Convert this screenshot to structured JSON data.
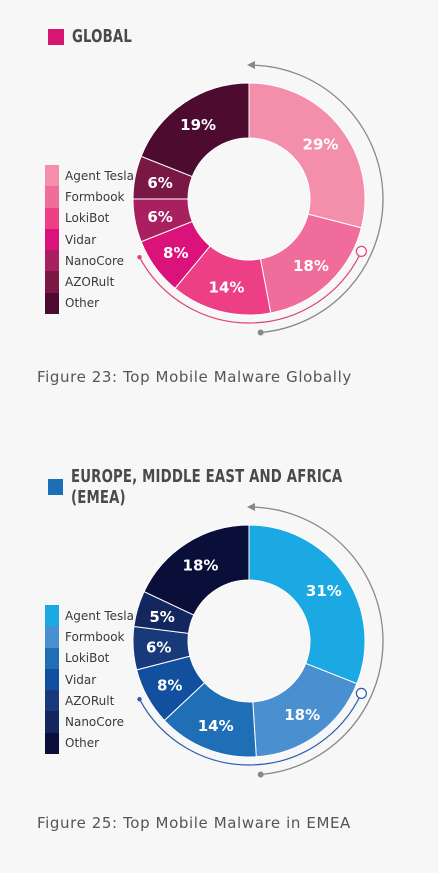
{
  "charts": [
    {
      "id": "sec1",
      "heading": "GLOBAL",
      "heading_color": "#d6176f",
      "caption": "Figure 23: Top Mobile Malware Globally",
      "legend": [
        {
          "label": "Agent Tesla",
          "color": "#f48fab"
        },
        {
          "label": "Formbook",
          "color": "#f06c9a"
        },
        {
          "label": "LokiBot",
          "color": "#ec3f86"
        },
        {
          "label": "Vidar",
          "color": "#db127a"
        },
        {
          "label": "NanoCore",
          "color": "#a8205f"
        },
        {
          "label": "AZORult",
          "color": "#7a1845"
        },
        {
          "label": "Other",
          "color": "#4d0b2f"
        }
      ],
      "slices": [
        {
          "label": "29%",
          "color": "#f48fab",
          "value": 29
        },
        {
          "label": "18%",
          "color": "#f06c9a",
          "value": 18
        },
        {
          "label": "14%",
          "color": "#ec3f86",
          "value": 14
        },
        {
          "label": "8%",
          "color": "#db127a",
          "value": 8
        },
        {
          "label": "6%",
          "color": "#a8205f",
          "value": 6
        },
        {
          "label": "6%",
          "color": "#7a1845",
          "value": 6
        },
        {
          "label": "19%",
          "color": "#4d0b2f",
          "value": 19
        }
      ],
      "arc_colors": {
        "outer": "#888888",
        "inner": "#e0456e"
      }
    },
    {
      "id": "sec2",
      "heading": "EUROPE, MIDDLE EAST AND AFRICA (EMEA)",
      "heading_color": "#1c6fb5",
      "caption": "Figure 25: Top Mobile Malware in EMEA",
      "legend": [
        {
          "label": "Agent Tesla",
          "color": "#1aa9e3"
        },
        {
          "label": "Formbook",
          "color": "#4a90d0"
        },
        {
          "label": "LokiBot",
          "color": "#1f6fb6"
        },
        {
          "label": "Vidar",
          "color": "#12509f"
        },
        {
          "label": "AZORult",
          "color": "#183a7a"
        },
        {
          "label": "NanoCore",
          "color": "#13275e"
        },
        {
          "label": "Other",
          "color": "#0a0f3a"
        }
      ],
      "slices": [
        {
          "label": "31%",
          "color": "#1aa9e3",
          "value": 31
        },
        {
          "label": "18%",
          "color": "#4a90d0",
          "value": 18
        },
        {
          "label": "14%",
          "color": "#1f6fb6",
          "value": 14
        },
        {
          "label": "8%",
          "color": "#12509f",
          "value": 8
        },
        {
          "label": "6%",
          "color": "#183a7a",
          "value": 6
        },
        {
          "label": "5%",
          "color": "#13275e",
          "value": 5
        },
        {
          "label": "18%",
          "color": "#0a0f3a",
          "value": 18
        }
      ],
      "arc_colors": {
        "outer": "#888888",
        "inner": "#2a5db0"
      }
    }
  ],
  "chart_data": [
    {
      "type": "pie",
      "title": "GLOBAL",
      "caption": "Figure 23: Top Mobile Malware Globally",
      "categories": [
        "Agent Tesla",
        "Formbook",
        "LokiBot",
        "Vidar",
        "NanoCore",
        "AZORult",
        "Other"
      ],
      "values": [
        29,
        18,
        14,
        8,
        6,
        6,
        19
      ],
      "unit": "%",
      "legend_position": "left"
    },
    {
      "type": "pie",
      "title": "EUROPE, MIDDLE EAST AND AFRICA (EMEA)",
      "caption": "Figure 25: Top Mobile Malware in EMEA",
      "categories": [
        "Agent Tesla",
        "Formbook",
        "LokiBot",
        "Vidar",
        "AZORult",
        "NanoCore",
        "Other"
      ],
      "values": [
        31,
        18,
        14,
        8,
        6,
        5,
        18
      ],
      "unit": "%",
      "legend_position": "left"
    }
  ]
}
